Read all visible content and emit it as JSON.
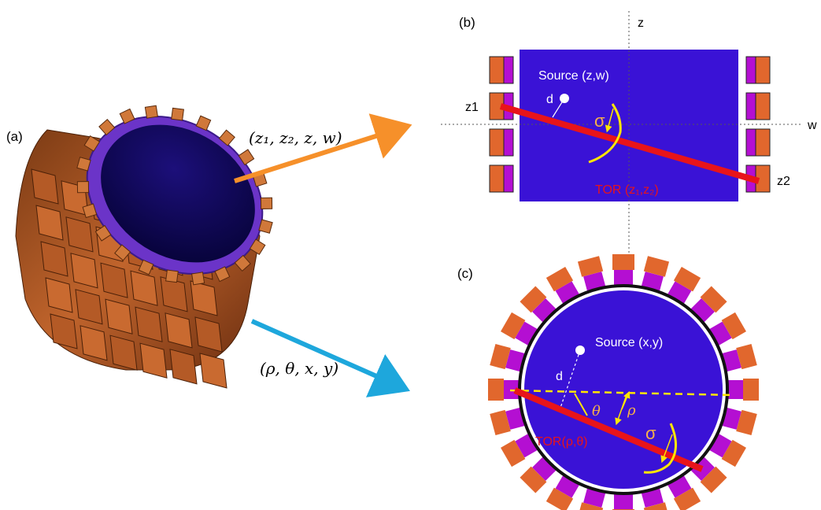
{
  "panels": {
    "a_label": "(a)",
    "b_label": "(b)",
    "c_label": "(c)"
  },
  "arrows": {
    "top_label": "(z₁, z₂, z, w)",
    "bottom_label": "(ρ, θ, x, y)"
  },
  "panel_b": {
    "z_axis": "z",
    "w_axis": "w",
    "source": "Source (z,w)",
    "d": "d",
    "z1": "z1",
    "z2": "z2",
    "sigma": "σ",
    "tor": "TOR (z₁,z₂)"
  },
  "panel_c": {
    "source": "Source (x,y)",
    "d": "d",
    "theta": "θ",
    "rho": "ρ",
    "sigma": "σ",
    "tor": "TOR(ρ,θ)"
  },
  "colors": {
    "fov": "#3a12d6",
    "crystal_orange": "#e1672d",
    "crystal_purple": "#b40fd2",
    "tor_red": "#e8141a",
    "annot_yellow": "#ffe600",
    "arrow_orange": "#f6902a",
    "arrow_blue": "#1ea7dc"
  }
}
